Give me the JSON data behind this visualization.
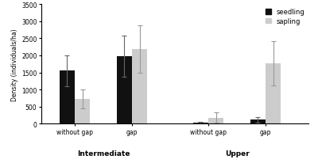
{
  "section_labels": [
    "Intermediate",
    "Upper"
  ],
  "group_labels": [
    "without gap",
    "gap",
    "without gap",
    "gap"
  ],
  "seedling_values": [
    1550,
    1970,
    30,
    120
  ],
  "sapling_values": [
    720,
    2180,
    175,
    1760
  ],
  "seedling_errors": [
    450,
    600,
    30,
    80
  ],
  "sapling_errors": [
    280,
    700,
    150,
    650
  ],
  "seedling_color": "#111111",
  "sapling_color": "#cccccc",
  "bar_width": 0.32,
  "group_centers": [
    1.0,
    2.2,
    3.8,
    5.0
  ],
  "section_centers": [
    1.6,
    4.4
  ],
  "ylim": [
    0,
    3500
  ],
  "yticks": [
    0,
    500,
    1000,
    1500,
    2000,
    2500,
    3000,
    3500
  ],
  "ylabel": "Density (individuals/ha)",
  "legend_labels": [
    "seedling",
    "sapling"
  ],
  "background_color": "#ffffff",
  "capsize": 2,
  "xlim": [
    0.3,
    5.9
  ]
}
